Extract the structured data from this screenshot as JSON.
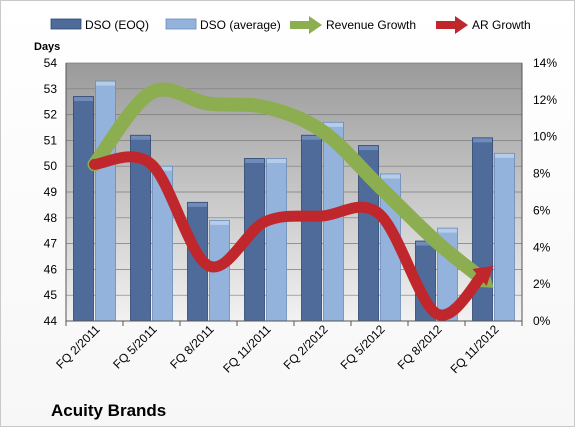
{
  "chart_data": {
    "type": "bar",
    "title": "",
    "company": "Acuity Brands",
    "categories": [
      "FQ 2/2011",
      "FQ 5/2011",
      "FQ 8/2011",
      "FQ 11/2011",
      "FQ 2/2012",
      "FQ 5/2012",
      "FQ 8/2012",
      "FQ 11/2012"
    ],
    "ylabel_left": "Days",
    "ylim_left": [
      44,
      54
    ],
    "yticks_left": [
      "44",
      "45",
      "46",
      "47",
      "48",
      "49",
      "50",
      "51",
      "52",
      "53",
      "54"
    ],
    "ylim_right": [
      0,
      14
    ],
    "yticks_right": [
      "0%",
      "2%",
      "4%",
      "6%",
      "8%",
      "10%",
      "12%",
      "14%"
    ],
    "bar_series": [
      {
        "name": "DSO (EOQ)",
        "color": "#4f6b99",
        "values": [
          52.7,
          51.2,
          48.6,
          50.3,
          51.2,
          50.8,
          47.1,
          51.1
        ]
      },
      {
        "name": "DSO (average)",
        "color": "#93b3dc",
        "values": [
          53.3,
          50.0,
          47.9,
          50.3,
          51.7,
          49.7,
          47.6,
          50.5
        ]
      }
    ],
    "line_series": [
      {
        "name": "Revenue Growth",
        "color": "#8cae51",
        "axis": "right",
        "values": [
          8.5,
          12.4,
          11.8,
          11.6,
          10.3,
          7.3,
          4.3,
          1.8
        ]
      },
      {
        "name": "AR Growth",
        "color": "#c0272d",
        "axis": "right",
        "values": [
          8.5,
          8.5,
          3.0,
          5.4,
          5.7,
          5.8,
          0.4,
          3.0
        ]
      }
    ],
    "grid": true,
    "legend_position": "top"
  }
}
